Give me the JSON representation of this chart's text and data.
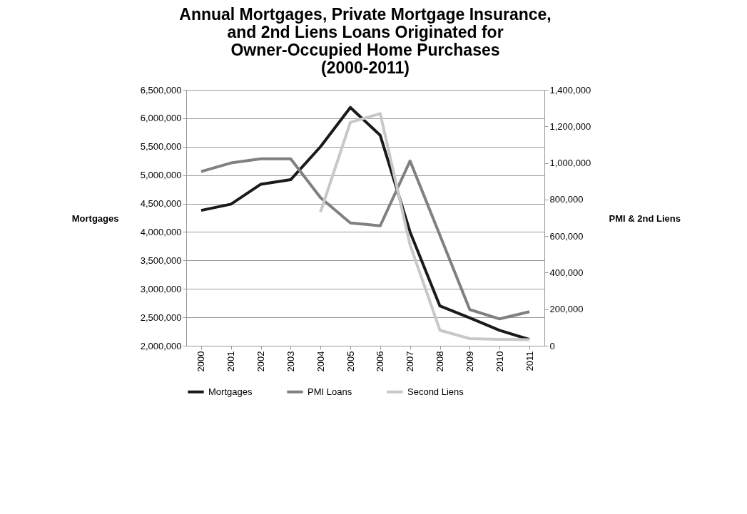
{
  "chart_data": {
    "type": "line",
    "title": "Annual Mortgages, Private Mortgage Insurance, and 2nd Liens Loans Originated for Owner-Occupied Home Purchases (2000-2011)",
    "ylabel": "Mortgages",
    "y2label": "PMI & 2nd Liens",
    "categories": [
      "2000",
      "2001",
      "2002",
      "2003",
      "2004",
      "2005",
      "2006",
      "2007",
      "2008",
      "2009",
      "2010",
      "2011"
    ],
    "series": [
      {
        "name": "Mortgages",
        "color": "#1a1a1a",
        "values": [
          4380000,
          4490000,
          4840000,
          4920000,
          5500000,
          6190000,
          5700000,
          4000000,
          2700000,
          2490000,
          2270000,
          2110000
        ]
      },
      {
        "name": "PMI Loans",
        "color": "#808080",
        "axis": "y2",
        "values": [
          953000,
          1000000,
          1023000,
          1023000,
          810000,
          672000,
          656000,
          1011000,
          604000,
          198000,
          147000,
          186000
        ]
      },
      {
        "name": "Second Liens",
        "color": "#c8c8c8",
        "axis": "y2",
        "values": [
          null,
          null,
          null,
          null,
          732000,
          1222000,
          1270000,
          552000,
          85000,
          39000,
          35000,
          33000
        ]
      }
    ],
    "ylim": [
      2000000,
      6500000
    ],
    "yticks": [
      {
        "value": 2000000,
        "label": "2,000,000"
      },
      {
        "value": 2500000,
        "label": "2,500,000"
      },
      {
        "value": 3000000,
        "label": "3,000,000"
      },
      {
        "value": 3500000,
        "label": "3,500,000"
      },
      {
        "value": 4000000,
        "label": "4,000,000"
      },
      {
        "value": 4500000,
        "label": "4,500,000"
      },
      {
        "value": 5000000,
        "label": "5,000,000"
      },
      {
        "value": 5500000,
        "label": "5,500,000"
      },
      {
        "value": 6000000,
        "label": "6,000,000"
      },
      {
        "value": 6500000,
        "label": "6,500,000"
      }
    ],
    "y2lim": [
      0,
      1400000
    ],
    "y2ticks": [
      0,
      {
        "value": 200000,
        "label": "200,000"
      },
      {
        "value": 400000,
        "label": "400,000"
      },
      {
        "value": 600000,
        "label": "600,000"
      },
      {
        "value": 800000,
        "label": "800,000"
      },
      {
        "value": 1000000,
        "label": "1,000,000"
      },
      {
        "value": 1200000,
        "label": "1,200,000"
      },
      {
        "value": 1400000,
        "label": "1,400,000"
      }
    ],
    "grid": "y",
    "legend": "bottom",
    "marker": "none",
    "line_style": "solid"
  }
}
